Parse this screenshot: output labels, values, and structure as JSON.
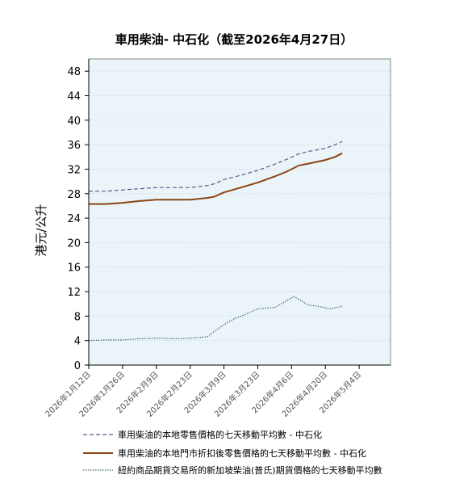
{
  "chart_data": {
    "type": "line",
    "title": "車用柴油- 中石化（截至2026年4月27日）",
    "ylabel": "港元/公升",
    "xlabel": "",
    "ylim": [
      0,
      50
    ],
    "yticks": [
      0,
      4,
      8,
      12,
      16,
      20,
      24,
      28,
      32,
      36,
      40,
      44,
      48
    ],
    "xlim": [
      "2026-01-12",
      "2026-05-17"
    ],
    "xtick_labels": [
      "2026年1月12日",
      "2026年1月26日",
      "2026年2月9日",
      "2026年2月23日",
      "2026年3月9日",
      "2026年3月23日",
      "2026年4月6日",
      "2026年4月20日",
      "2026年5月4日"
    ],
    "xtick_dates": [
      "2026-01-12",
      "2026-01-26",
      "2026-02-09",
      "2026-02-23",
      "2026-03-09",
      "2026-03-23",
      "2026-04-06",
      "2026-04-20",
      "2026-05-04"
    ],
    "grid": true,
    "legend_position": "bottom",
    "series": [
      {
        "name": "車用柴油的本地零售價格的七天移動平均數  - 中石化",
        "style": "dashed",
        "color": "#5a5a8a",
        "x": [
          "2026-01-12",
          "2026-01-19",
          "2026-01-26",
          "2026-02-02",
          "2026-02-09",
          "2026-02-16",
          "2026-02-23",
          "2026-03-02",
          "2026-03-05",
          "2026-03-09",
          "2026-03-16",
          "2026-03-23",
          "2026-03-30",
          "2026-04-04",
          "2026-04-09",
          "2026-04-13",
          "2026-04-20",
          "2026-04-24",
          "2026-04-27"
        ],
        "y": [
          28.4,
          28.4,
          28.6,
          28.8,
          29.0,
          29.0,
          29.0,
          29.3,
          29.6,
          30.3,
          31.0,
          31.8,
          32.8,
          33.6,
          34.5,
          34.9,
          35.4,
          36.0,
          36.5
        ]
      },
      {
        "name": "車用柴油的本地門市折扣後零售價格的七天移動平均數  - 中石化",
        "style": "solid",
        "color": "#8b4513",
        "x": [
          "2026-01-12",
          "2026-01-19",
          "2026-01-26",
          "2026-02-02",
          "2026-02-09",
          "2026-02-16",
          "2026-02-23",
          "2026-03-02",
          "2026-03-05",
          "2026-03-09",
          "2026-03-16",
          "2026-03-23",
          "2026-03-30",
          "2026-04-04",
          "2026-04-09",
          "2026-04-13",
          "2026-04-20",
          "2026-04-24",
          "2026-04-27"
        ],
        "y": [
          26.3,
          26.3,
          26.5,
          26.8,
          27.0,
          27.0,
          27.0,
          27.3,
          27.5,
          28.2,
          29.0,
          29.8,
          30.8,
          31.6,
          32.6,
          32.9,
          33.5,
          34.0,
          34.6
        ]
      },
      {
        "name": "紐約商品期貨交易所的新加坡柴油(普氏)期貨價格的七天移動平均數",
        "style": "dotted",
        "color": "#4a6a70",
        "x": [
          "2026-01-12",
          "2026-01-19",
          "2026-01-26",
          "2026-02-02",
          "2026-02-09",
          "2026-02-16",
          "2026-02-23",
          "2026-03-02",
          "2026-03-05",
          "2026-03-09",
          "2026-03-13",
          "2026-03-18",
          "2026-03-23",
          "2026-03-30",
          "2026-04-03",
          "2026-04-07",
          "2026-04-13",
          "2026-04-17",
          "2026-04-22",
          "2026-04-27"
        ],
        "y": [
          4.0,
          4.1,
          4.1,
          4.3,
          4.4,
          4.3,
          4.4,
          4.6,
          5.5,
          6.6,
          7.5,
          8.3,
          9.2,
          9.4,
          10.3,
          11.2,
          9.8,
          9.6,
          9.2,
          9.6
        ]
      }
    ]
  }
}
